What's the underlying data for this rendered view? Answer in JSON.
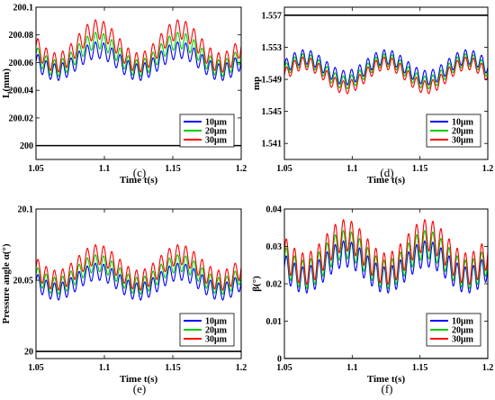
{
  "chart_data": [
    {
      "type": "line",
      "caption": "(c)",
      "xlabel": "Time t(s)",
      "ylabel": "L(mm)",
      "xlim": [
        1.05,
        1.2
      ],
      "ylim": [
        199.99,
        200.1
      ],
      "xticks": [
        1.05,
        1.1,
        1.15,
        1.2
      ],
      "xtick_labels": [
        "1.05",
        "1.1",
        "1.15",
        "1.2"
      ],
      "yticks": [
        200,
        200.02,
        200.04,
        200.06,
        200.08,
        200.1
      ],
      "ytick_labels": [
        "200",
        "200.02",
        "200.04",
        "200.06",
        "200.08",
        "200.1"
      ],
      "legend_position": "lower-right",
      "wave": {
        "slow_period": 0.06,
        "slow_phase_peak": 1.095,
        "fast_cycles_per_slow": 10
      },
      "series": [
        {
          "name": "10μm",
          "color": "#0000ff",
          "center": 200.061,
          "slow_amplitude": 0.008,
          "fast_amplitude": 0.006
        },
        {
          "name": "20μm",
          "color": "#00cc00",
          "center": 200.066,
          "slow_amplitude": 0.01,
          "fast_amplitude": 0.006
        },
        {
          "name": "30μm",
          "color": "#ff0000",
          "center": 200.072,
          "slow_amplitude": 0.012,
          "fast_amplitude": 0.007
        }
      ],
      "reference_lines": [
        {
          "y": 200,
          "color": "#000000"
        }
      ]
    },
    {
      "type": "line",
      "caption": "(d)",
      "xlabel": "Time t(s)",
      "ylabel": "mp",
      "xlim": [
        1.05,
        1.2
      ],
      "ylim": [
        1.539,
        1.558
      ],
      "xticks": [
        1.05,
        1.1,
        1.15,
        1.2
      ],
      "xtick_labels": [
        "1.05",
        "1.1",
        "1.15",
        "1.2"
      ],
      "yticks": [
        1.541,
        1.545,
        1.549,
        1.553,
        1.557
      ],
      "ytick_labels": [
        "1.541",
        "1.545",
        "1.549",
        "1.553",
        "1.557"
      ],
      "legend_position": "lower-right",
      "wave": {
        "slow_period": 0.06,
        "slow_phase_peak": 1.065,
        "fast_cycles_per_slow": 10
      },
      "series": [
        {
          "name": "10μm",
          "color": "#0000ff",
          "center": 1.5505,
          "slow_amplitude": 0.0013,
          "fast_amplitude": 0.0009
        },
        {
          "name": "20μm",
          "color": "#00cc00",
          "center": 1.55,
          "slow_amplitude": 0.0014,
          "fast_amplitude": 0.0008
        },
        {
          "name": "30μm",
          "color": "#ff0000",
          "center": 1.5495,
          "slow_amplitude": 0.0015,
          "fast_amplitude": 0.0008
        }
      ],
      "reference_lines": [
        {
          "y": 1.557,
          "color": "#000000"
        }
      ]
    },
    {
      "type": "line",
      "caption": "(e)",
      "xlabel": "Time t(s)",
      "ylabel": "Pressure angle α(°)",
      "xlim": [
        1.05,
        1.2
      ],
      "ylim": [
        19.995,
        20.1
      ],
      "xticks": [
        1.05,
        1.1,
        1.15,
        1.2
      ],
      "xtick_labels": [
        "1.05",
        "1.1",
        "1.15",
        "1.2"
      ],
      "yticks": [
        20,
        20.05,
        20.1
      ],
      "ytick_labels": [
        "20",
        "20.05",
        "20.1"
      ],
      "legend_position": "lower-right",
      "wave": {
        "slow_period": 0.06,
        "slow_phase_peak": 1.095,
        "fast_cycles_per_slow": 10
      },
      "series": [
        {
          "name": "10μm",
          "color": "#0000ff",
          "center": 20.049,
          "slow_amplitude": 0.007,
          "fast_amplitude": 0.006
        },
        {
          "name": "20μm",
          "color": "#00cc00",
          "center": 20.054,
          "slow_amplitude": 0.008,
          "fast_amplitude": 0.006
        },
        {
          "name": "30μm",
          "color": "#ff0000",
          "center": 20.059,
          "slow_amplitude": 0.009,
          "fast_amplitude": 0.007
        }
      ],
      "reference_lines": [
        {
          "y": 20,
          "color": "#000000"
        }
      ]
    },
    {
      "type": "line",
      "caption": "(f)",
      "xlabel": "Time t(s)",
      "ylabel": "β(°)",
      "xlim": [
        1.05,
        1.2
      ],
      "ylim": [
        0,
        0.04
      ],
      "xticks": [
        1.05,
        1.1,
        1.15,
        1.2
      ],
      "xtick_labels": [
        "1.05",
        "1.1",
        "1.15",
        "1.2"
      ],
      "yticks": [
        0,
        0.01,
        0.02,
        0.03,
        0.04
      ],
      "ytick_labels": [
        "0",
        "0.01",
        "0.02",
        "0.03",
        "0.04"
      ],
      "legend_position": "lower-right",
      "wave": {
        "slow_period": 0.06,
        "slow_phase_peak": 1.095,
        "fast_cycles_per_slow": 10
      },
      "series": [
        {
          "name": "10μm",
          "color": "#0000ff",
          "center": 0.0245,
          "slow_amplitude": 0.0035,
          "fast_amplitude": 0.0035
        },
        {
          "name": "20μm",
          "color": "#00cc00",
          "center": 0.0265,
          "slow_amplitude": 0.004,
          "fast_amplitude": 0.0038
        },
        {
          "name": "30μm",
          "color": "#ff0000",
          "center": 0.0285,
          "slow_amplitude": 0.0045,
          "fast_amplitude": 0.0042
        }
      ],
      "reference_lines": [
        {
          "y": 0,
          "color": "#000000"
        }
      ]
    }
  ]
}
